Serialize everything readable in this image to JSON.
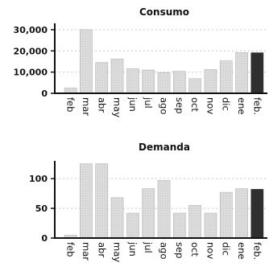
{
  "colors": {
    "bar": "#d7d7d7",
    "bar_stroke": "#b5b5b5",
    "highlight": "#2f2f2f",
    "axis": "#111111",
    "grid": "#c9c9c9"
  },
  "chart_data": [
    {
      "type": "bar",
      "title": "Consumo",
      "categories": [
        "feb",
        "mar",
        "abr",
        "may",
        "jun",
        "jul",
        "ago",
        "sep",
        "oct",
        "nov",
        "dic",
        "ene",
        "feb."
      ],
      "values": [
        2500,
        30000,
        14500,
        16200,
        11600,
        11000,
        9800,
        10400,
        6900,
        11200,
        15300,
        19200,
        19100
      ],
      "highlight_index": 12,
      "yticks": [
        0,
        10000,
        20000,
        30000
      ],
      "ytick_labels": [
        "0",
        "10,000",
        "20,000",
        "30,000"
      ],
      "ylim": [
        0,
        33000
      ],
      "grid": true
    },
    {
      "type": "bar",
      "title": "Demanda",
      "categories": [
        "feb",
        "mar",
        "abr",
        "may",
        "jun",
        "jul",
        "ago",
        "sep",
        "oct",
        "nov",
        "dic",
        "ene",
        "feb."
      ],
      "values": [
        5,
        125,
        125,
        68,
        42,
        83,
        97,
        42,
        55,
        42,
        77,
        83,
        82
      ],
      "highlight_index": 12,
      "yticks": [
        0,
        50,
        100
      ],
      "ytick_labels": [
        "0",
        "50",
        "100"
      ],
      "ylim": [
        0,
        130
      ],
      "grid": true
    }
  ]
}
